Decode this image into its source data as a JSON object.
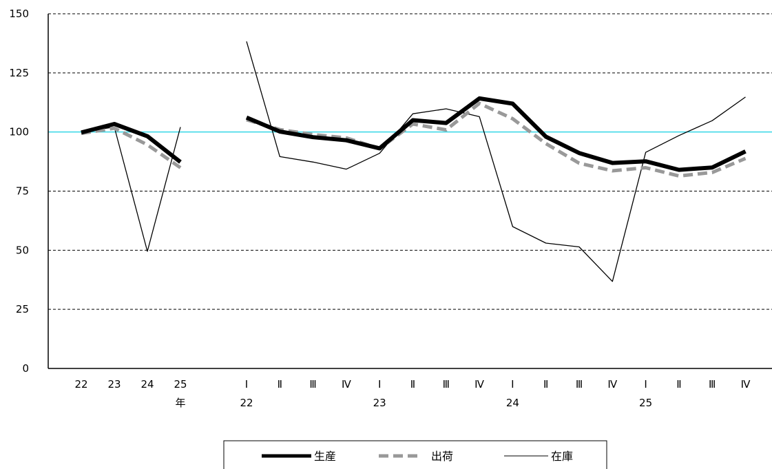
{
  "chart_data": {
    "type": "line",
    "ylim": [
      0,
      150
    ],
    "yticks": [
      "0",
      "25",
      "50",
      "75",
      "100",
      "125",
      "150"
    ],
    "grid": "dashed horizontal",
    "reference_line": {
      "y": 100,
      "color": "#33d6e6"
    },
    "segments": [
      {
        "name": "annual",
        "categories": [
          "22",
          "23",
          "24",
          "25"
        ],
        "group_labels": [
          {
            "at": 3,
            "label": "年"
          }
        ]
      },
      {
        "name": "quarterly",
        "categories": [
          "Ⅰ",
          "Ⅱ",
          "Ⅲ",
          "Ⅳ",
          "Ⅰ",
          "Ⅱ",
          "Ⅲ",
          "Ⅳ",
          "Ⅰ",
          "Ⅱ",
          "Ⅲ",
          "Ⅳ",
          "Ⅰ",
          "Ⅱ",
          "Ⅲ",
          "Ⅳ"
        ],
        "group_labels": [
          {
            "at": 0,
            "label": "22"
          },
          {
            "at": 4,
            "label": "23"
          },
          {
            "at": 8,
            "label": "24"
          },
          {
            "at": 12,
            "label": "25"
          }
        ]
      }
    ],
    "series": [
      {
        "name": "生産",
        "color": "#000000",
        "style": "thick-solid",
        "annual": [
          99.8,
          103.4,
          98.2,
          87.3
        ],
        "quarterly": [
          106.1,
          100.2,
          97.8,
          96.5,
          93.1,
          105.0,
          103.8,
          114.2,
          112.0,
          98.0,
          91.1,
          86.9,
          87.6,
          84.0,
          85.0,
          91.8
        ]
      },
      {
        "name": "出荷",
        "color": "#999999",
        "style": "thick-dashed",
        "annual": [
          99.4,
          101.6,
          94.6,
          84.9
        ],
        "quarterly": [
          105.2,
          101.0,
          98.9,
          97.5,
          93.0,
          103.4,
          100.9,
          112.1,
          105.6,
          95.1,
          86.8,
          83.6,
          84.9,
          81.4,
          82.9,
          88.8
        ]
      },
      {
        "name": "在庫",
        "color": "#000000",
        "style": "thin-solid",
        "annual": [
          100.0,
          102.1,
          49.5,
          102.1
        ],
        "quarterly": [
          138.3,
          89.6,
          87.3,
          84.3,
          91.0,
          107.7,
          109.8,
          106.5,
          60.0,
          53.0,
          51.4,
          36.8,
          91.4,
          98.5,
          104.8,
          114.8
        ]
      }
    ]
  },
  "legend": {
    "items": [
      {
        "label": "生産"
      },
      {
        "label": "出荷"
      },
      {
        "label": "在庫"
      }
    ]
  }
}
